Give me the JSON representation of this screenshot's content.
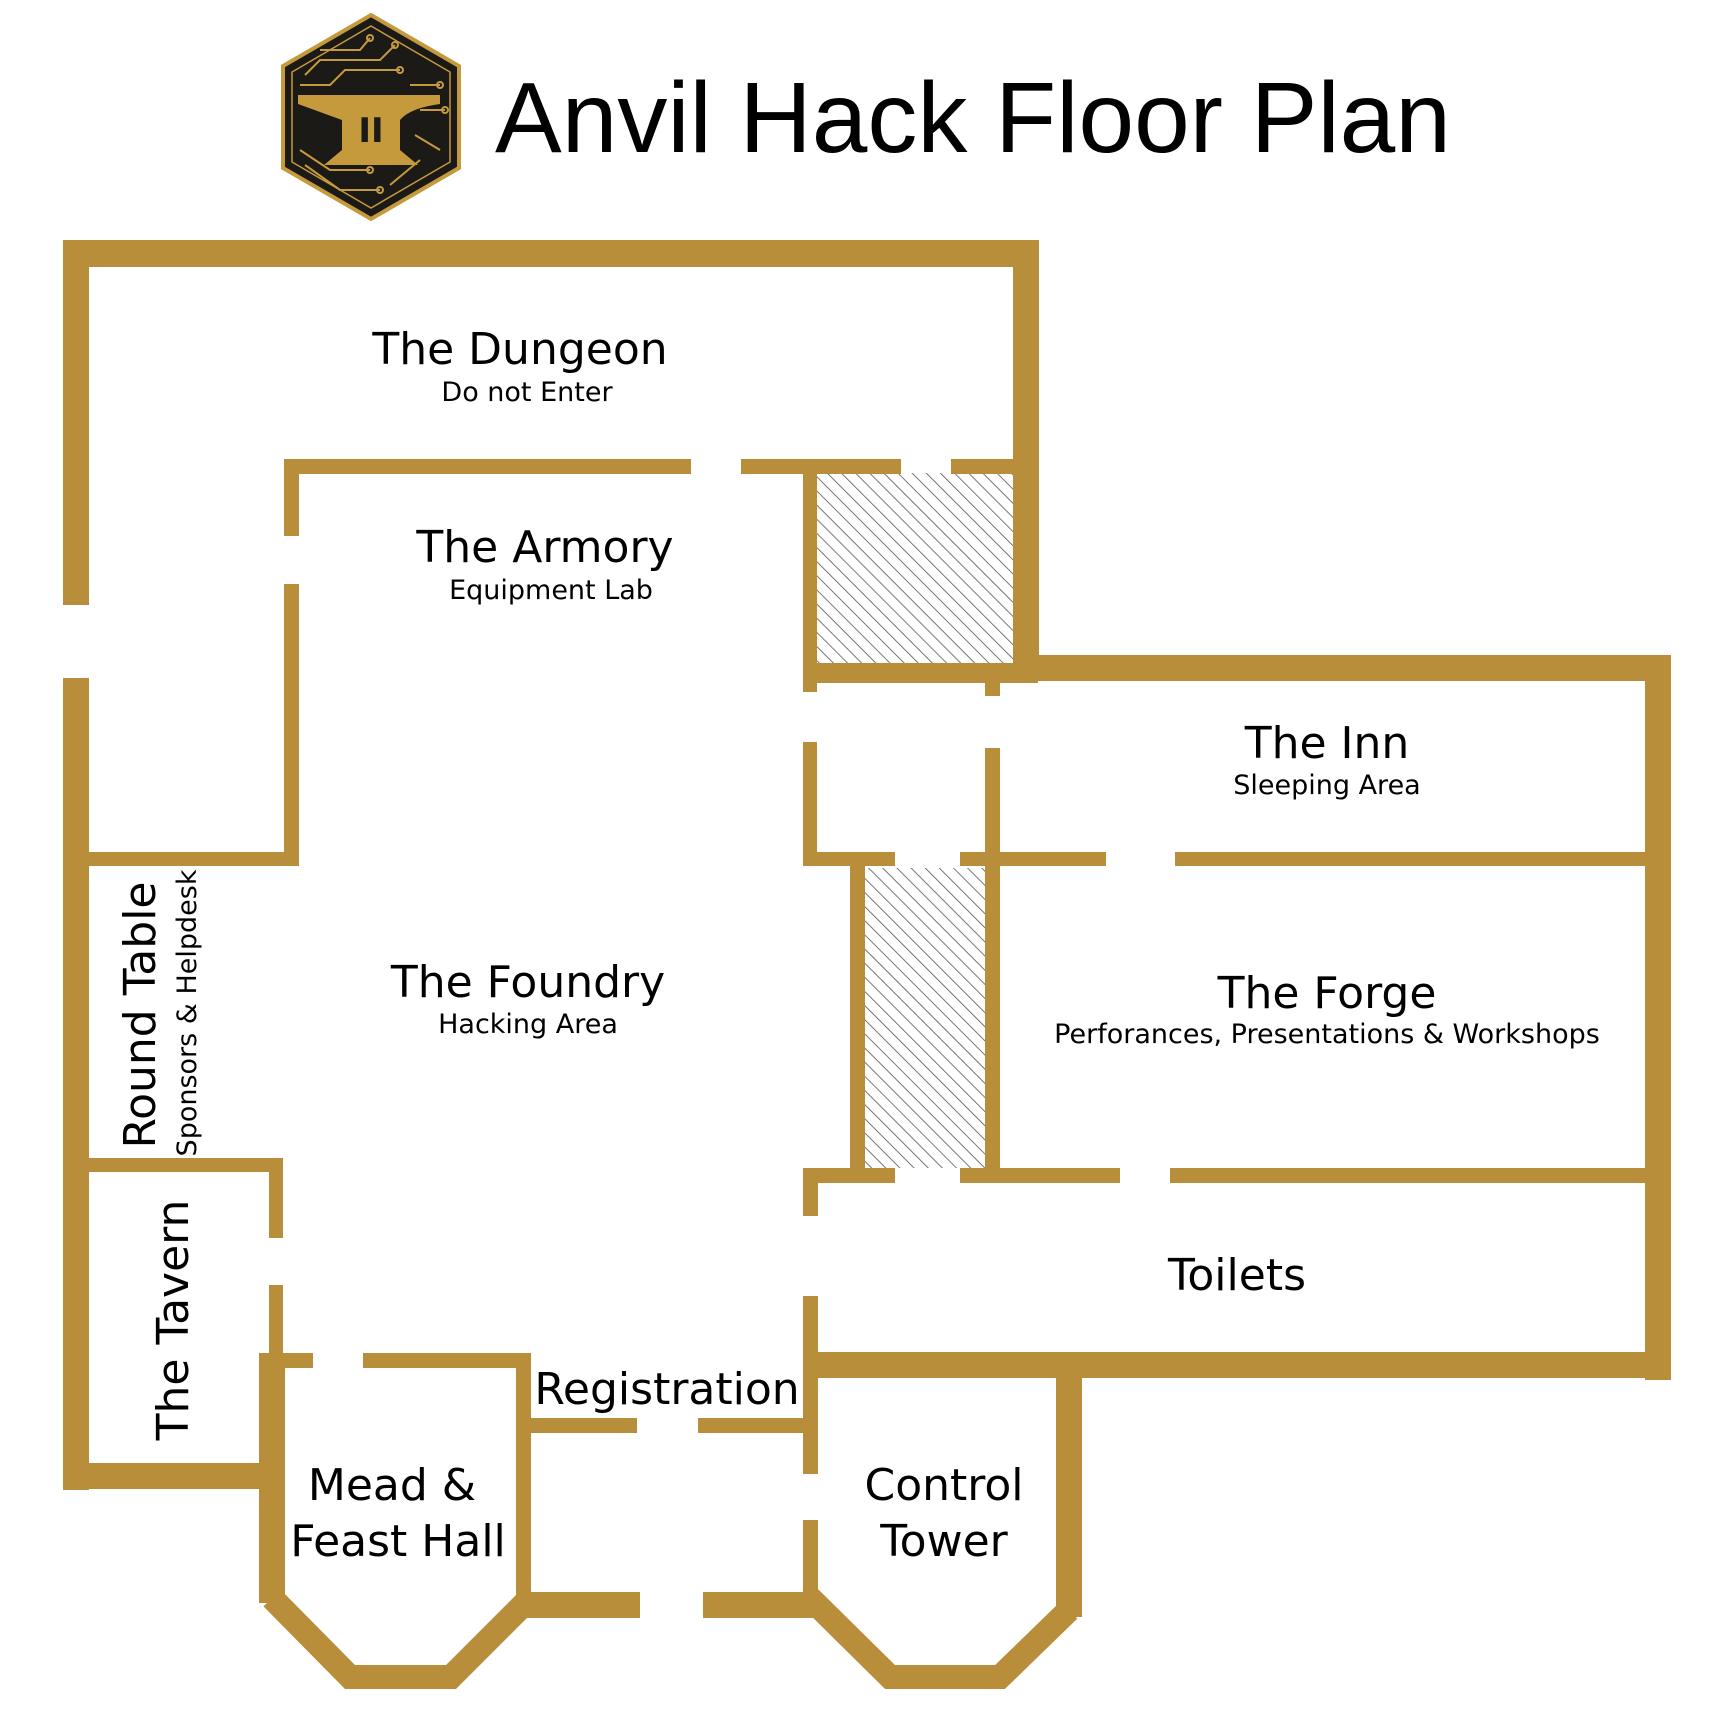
{
  "title": "Anvil Hack Floor Plan",
  "logo": {
    "name": "anvil-hack-logo",
    "monogram": "II"
  },
  "colors": {
    "wall": "#B98E3A",
    "logo_bg": "#1C1A17",
    "logo_gold": "#C59A3D",
    "hatch": "#555555",
    "text": "#000000"
  },
  "rooms": {
    "dungeon": {
      "name": "The Dungeon",
      "sub": "Do not Enter"
    },
    "armory": {
      "name": "The Armory",
      "sub": "Equipment Lab"
    },
    "foundry": {
      "name": "The Foundry",
      "sub": "Hacking Area"
    },
    "inn": {
      "name": "The Inn",
      "sub": "Sleeping Area"
    },
    "forge": {
      "name": "The Forge",
      "sub": "Perforances, Presentations & Workshops"
    },
    "round_table": {
      "name": "Round Table",
      "sub": "Sponsors & Helpdesk"
    },
    "tavern": {
      "name": "The Tavern"
    },
    "toilets": {
      "name": "Toilets"
    },
    "registration": {
      "name": "Registration"
    },
    "mead_hall": {
      "line1": "Mead &",
      "line2": "Feast Hall"
    },
    "control_tower": {
      "line1": "Control",
      "line2": "Tower"
    }
  }
}
